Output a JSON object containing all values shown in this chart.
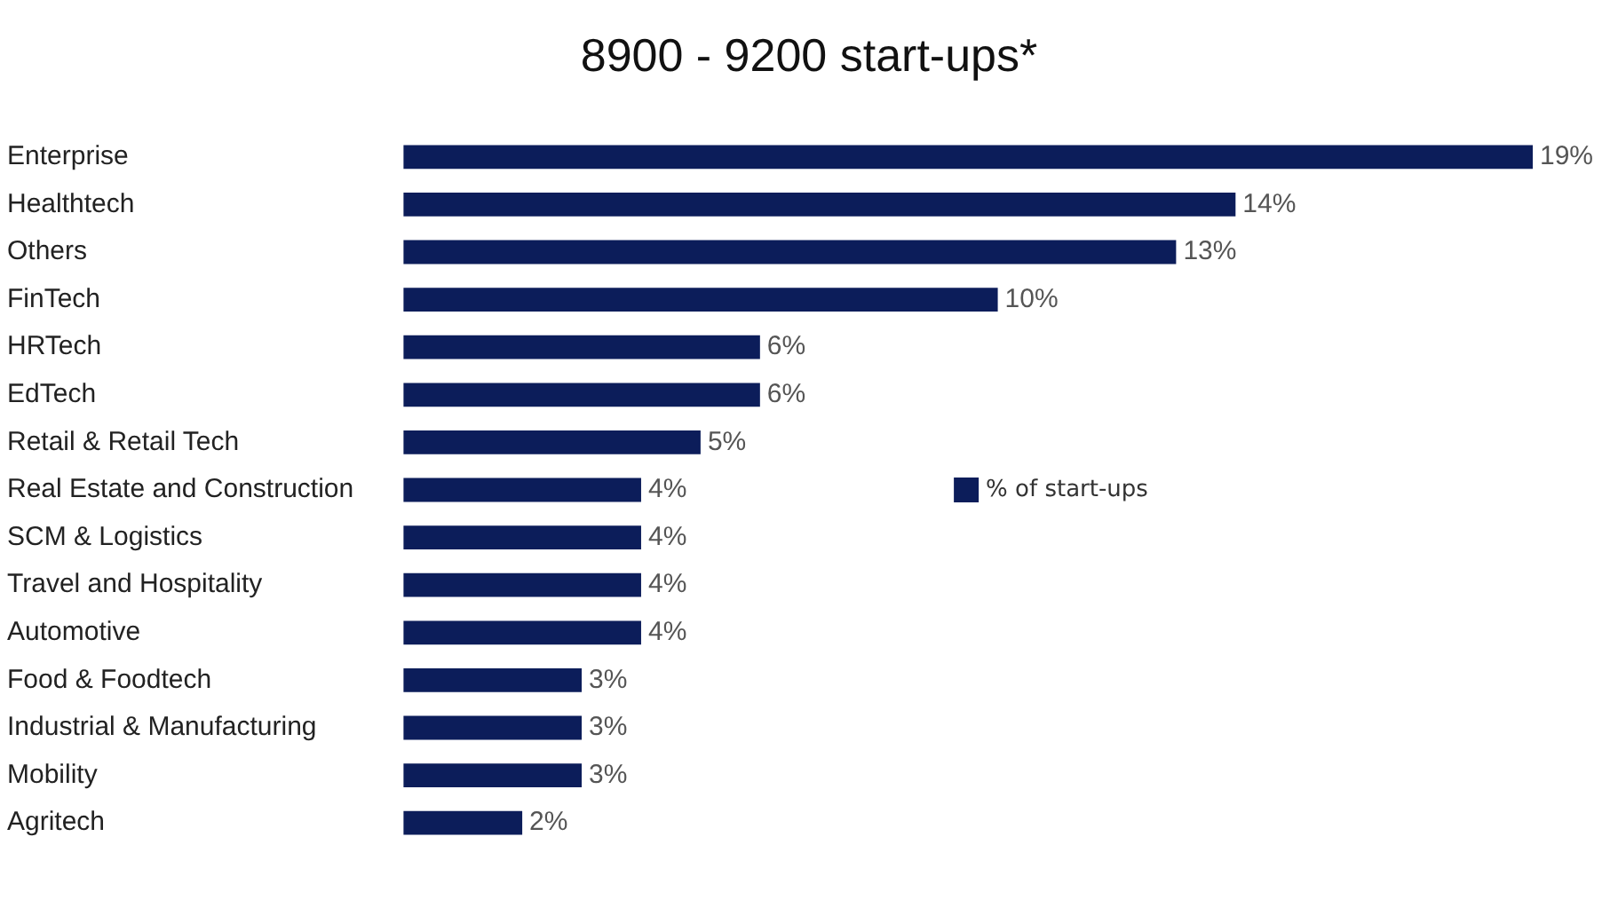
{
  "chart_data": {
    "type": "bar",
    "orientation": "horizontal",
    "title": "8900 - 9200 start-ups*",
    "categories": [
      "Enterprise",
      "Healthtech",
      "Others",
      "FinTech",
      "HRTech",
      "EdTech",
      "Retail & Retail Tech",
      "Real Estate and Construction",
      "SCM & Logistics",
      "Travel and Hospitality",
      "Automotive",
      "Food & Foodtech",
      "Industrial & Manufacturing",
      "Mobility",
      "Agritech"
    ],
    "series": [
      {
        "name": "% of start-ups",
        "color": "#0c1d5a",
        "values": [
          19,
          14,
          13,
          10,
          6,
          6,
          5,
          4,
          4,
          4,
          4,
          3,
          3,
          3,
          2
        ],
        "value_labels": [
          "19%",
          "14%",
          "13%",
          "10%",
          "6%",
          "6%",
          "5%",
          "4%",
          "4%",
          "4%",
          "4%",
          "3%",
          "3%",
          "3%",
          "2%"
        ]
      }
    ],
    "legend": "center right",
    "tick_labels": "y"
  }
}
